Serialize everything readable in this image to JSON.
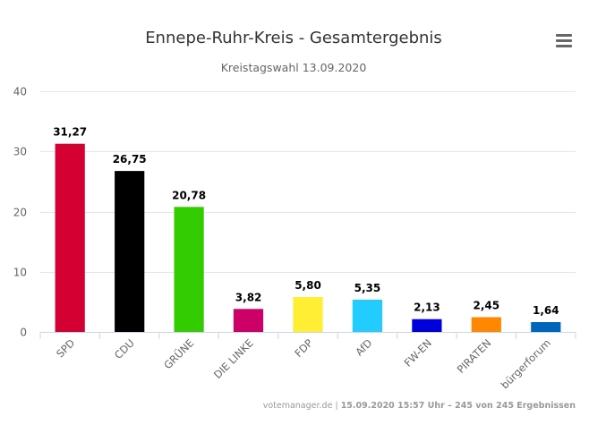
{
  "chart_data": {
    "type": "bar",
    "title": "Ennepe-Ruhr-Kreis - Gesamtergebnis",
    "subtitle": "Kreistagswahl 13.09.2020",
    "categories": [
      "SPD",
      "CDU",
      "GRÜNE",
      "DIE LINKE",
      "FDP",
      "AfD",
      "FW-EN",
      "PIRATEN",
      "bürgerforum"
    ],
    "values": [
      31.27,
      26.75,
      20.78,
      3.82,
      5.8,
      5.35,
      2.13,
      2.45,
      1.64
    ],
    "data_labels": [
      "31,27",
      "26,75",
      "20,78",
      "3,82",
      "5,80",
      "5,35",
      "2,13",
      "2,45",
      "1,64"
    ],
    "colors": [
      "#d50032",
      "#000000",
      "#33cc00",
      "#cc0066",
      "#ffee33",
      "#22ccff",
      "#0000dd",
      "#ff8800",
      "#0066bb"
    ],
    "ylim": [
      0,
      40
    ],
    "yticks": [
      0,
      10,
      20,
      30,
      40
    ],
    "xlabel": "",
    "ylabel": "",
    "grid": true,
    "legend": "none"
  },
  "credits": {
    "source": "votemanager.de",
    "separator": " | ",
    "detail": "15.09.2020 15:57 Uhr – 245 von 245 Ergebnissen"
  },
  "menu": {
    "icon": "hamburger-menu-icon"
  }
}
